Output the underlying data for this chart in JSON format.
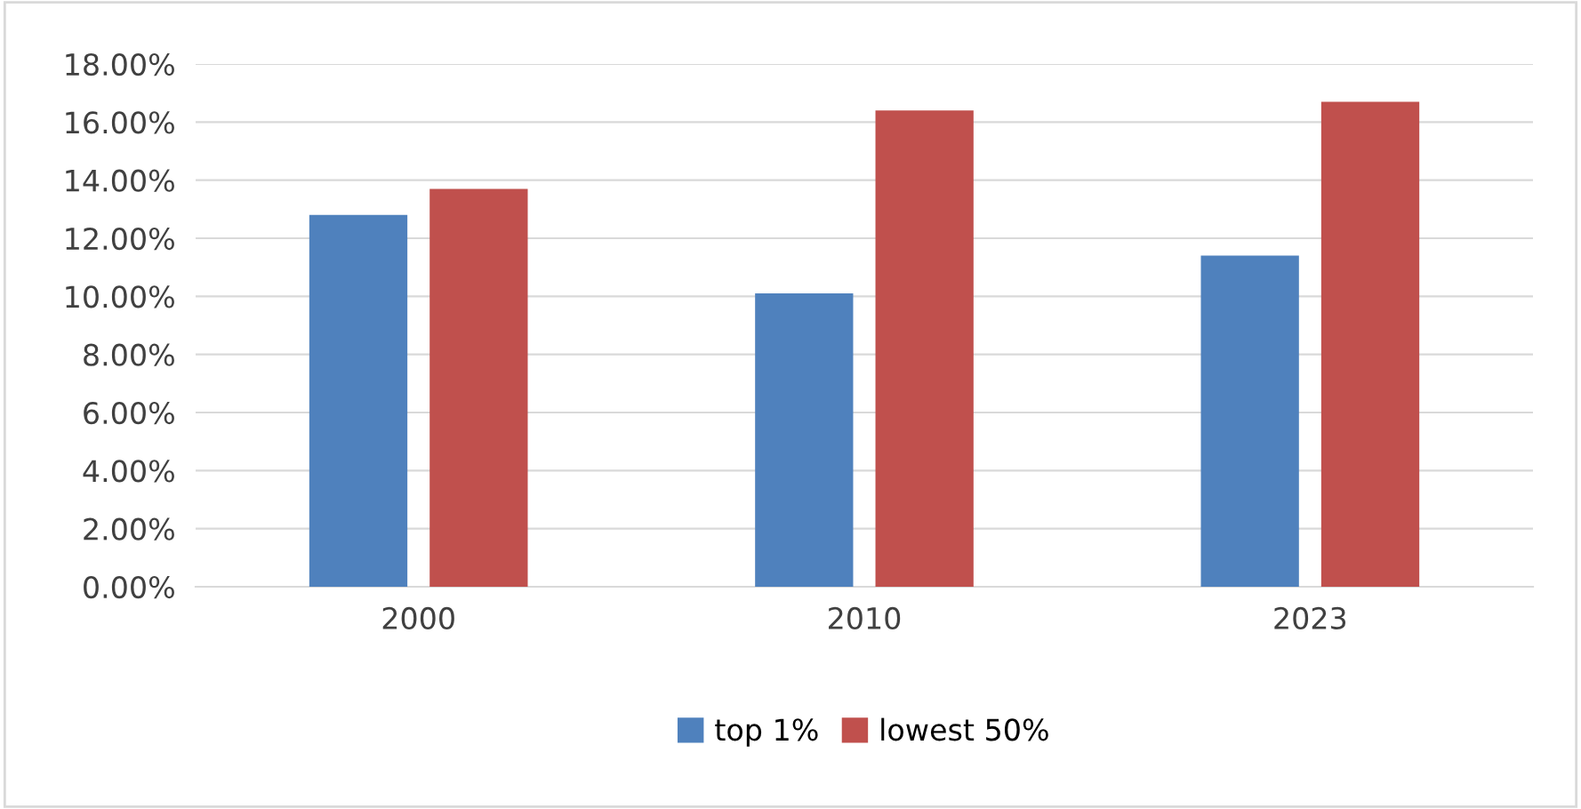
{
  "chart_data": {
    "type": "bar",
    "categories": [
      "2000",
      "2010",
      "2023"
    ],
    "series": [
      {
        "name": "top 1%",
        "color": "#4f81bd",
        "values": [
          12.8,
          10.1,
          11.4
        ]
      },
      {
        "name": "lowest 50%",
        "color": "#c0504d",
        "values": [
          13.7,
          16.4,
          16.7
        ]
      }
    ],
    "ylim": [
      0,
      18
    ],
    "yticks": [
      {
        "value": 0,
        "label": "0.00%"
      },
      {
        "value": 2,
        "label": "2.00%"
      },
      {
        "value": 4,
        "label": "4.00%"
      },
      {
        "value": 6,
        "label": "6.00%"
      },
      {
        "value": 8,
        "label": "8.00%"
      },
      {
        "value": 10,
        "label": "10.00%"
      },
      {
        "value": 12,
        "label": "12.00%"
      },
      {
        "value": 14,
        "label": "14.00%"
      },
      {
        "value": 16,
        "label": "16.00%"
      },
      {
        "value": 18,
        "label": "18.00%"
      }
    ],
    "grid": "y",
    "legend": "bottom"
  }
}
